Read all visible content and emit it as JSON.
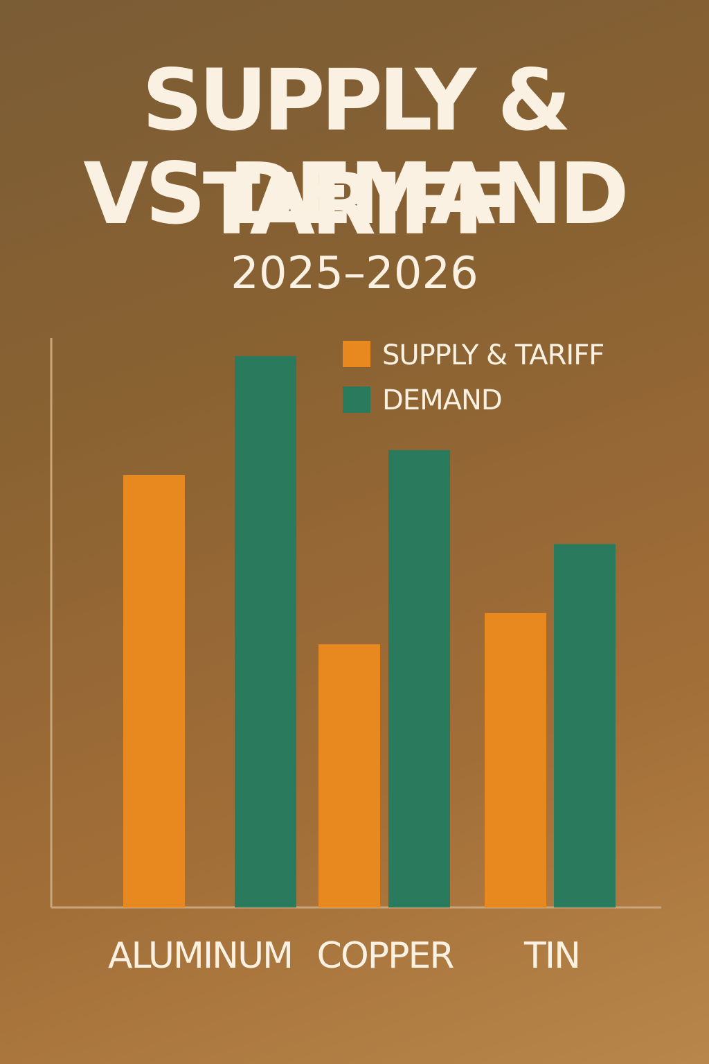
{
  "chart_data": {
    "type": "bar",
    "title": "SUPPLY & TARIFF\nVS DEMAND",
    "title_lines": [
      "SUPPLY & TARIFF",
      "VS DEMAND"
    ],
    "subtitle": "2025–2026",
    "categories": [
      "ALUMINUM",
      "COPPER",
      "TIN"
    ],
    "series": [
      {
        "name": "SUPPLY & TARIFF",
        "color": "#e88920",
        "values": [
          69,
          42,
          47
        ]
      },
      {
        "name": "DEMAND",
        "color": "#2a7a5e",
        "values": [
          88,
          73,
          58
        ]
      }
    ],
    "ylim": [
      0,
      90
    ],
    "xlabel": "",
    "ylabel": "",
    "grid": false,
    "axis_color": "#c9a67a",
    "legend_position": "top-right"
  }
}
